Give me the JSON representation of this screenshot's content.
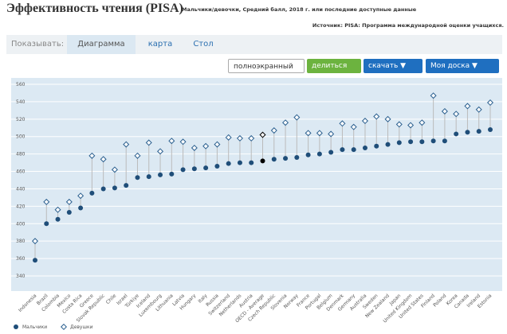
{
  "header": {
    "title": "Эффективность чтения (PISA)",
    "subtitle": "Мальчики/девочки, Средний балл, 2018 г. или последние доступные данные",
    "source": "Источник: PISA: Программа международной оценки учащихся."
  },
  "tabs": {
    "label": "Показывать:",
    "items": [
      "Диаграмма",
      "карта",
      "Стол"
    ]
  },
  "buttons": [
    "полноэкранный",
    "делиться",
    "скачать ▼",
    "Моя доска ▼"
  ],
  "chart_data": {
    "type": "dumbbell",
    "categories": [
      "Indonesia",
      "Brazil",
      "Colombia",
      "Mexico",
      "Costa Rica",
      "Greece",
      "Slovak Republic",
      "Chile",
      "Israel",
      "Türkiye",
      "Iceland",
      "Luxembourg",
      "Lithuania",
      "Latvia",
      "Hungary",
      "Italy",
      "Russia",
      "Switzerland",
      "Netherlands",
      "Austria",
      "OECD - Average",
      "Czech Republic",
      "Slovenia",
      "Norway",
      "France",
      "Portugal",
      "Belgium",
      "Denmark",
      "Germany",
      "Australia",
      "Sweden",
      "New Zealand",
      "Japan",
      "United Kingdom",
      "United States",
      "Finland",
      "Poland",
      "Korea",
      "Canada",
      "Ireland",
      "Estonia"
    ],
    "series": [
      {
        "name": "Мальчики",
        "color": "#1f4e79",
        "marker": "circle",
        "values": [
          358,
          400,
          405,
          413,
          418,
          435,
          440,
          441,
          444,
          453,
          454,
          456,
          457,
          462,
          463,
          464,
          466,
          469,
          470,
          470,
          472,
          474,
          475,
          476,
          479,
          480,
          482,
          485,
          485,
          487,
          489,
          491,
          493,
          494,
          494,
          495,
          495,
          503,
          505,
          506,
          508
        ]
      },
      {
        "name": "Девушки",
        "color": "#2a5f8f",
        "marker": "diamond",
        "values": [
          380,
          425,
          416,
          425,
          432,
          478,
          474,
          462,
          491,
          478,
          493,
          483,
          495,
          494,
          487,
          489,
          491,
          499,
          498,
          498,
          502,
          507,
          516,
          522,
          504,
          504,
          503,
          515,
          511,
          518,
          523,
          520,
          514,
          513,
          516,
          547,
          529,
          526,
          535,
          531,
          539
        ]
      }
    ],
    "highlight_index": 20,
    "highlight_color": "#000000",
    "stem_color": "#bbbbbb",
    "background": "#dce9f3",
    "grid": true,
    "ylim": [
      340,
      560
    ],
    "yticks": [
      340,
      360,
      380,
      400,
      420,
      440,
      460,
      480,
      500,
      520,
      540,
      560
    ]
  }
}
